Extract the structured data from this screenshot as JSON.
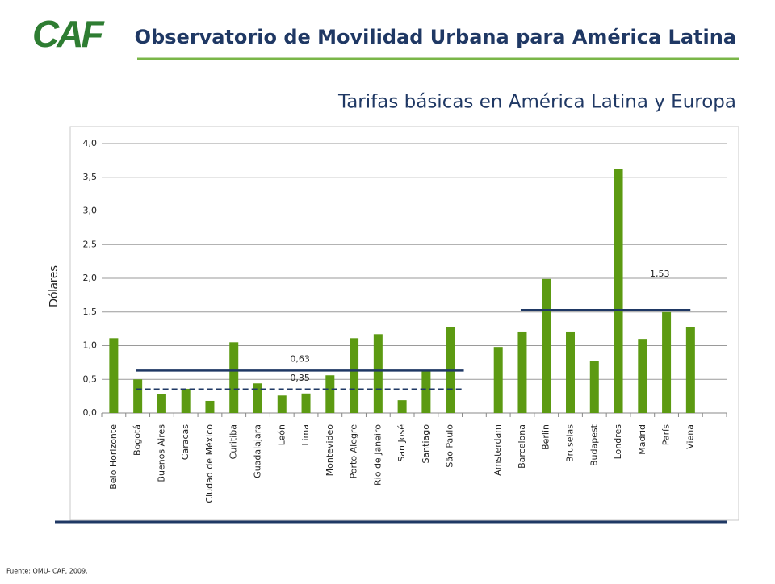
{
  "logo": "CAF",
  "header": {
    "title": "Observatorio de Movilidad Urbana para América Latina"
  },
  "footer": {
    "source": "Fuente: OMU- CAF, 2009."
  },
  "chart_data": {
    "type": "bar",
    "title": "Tarifas básicas en América Latina y Europa",
    "y_label": "Dólares",
    "color": "#5c9a12",
    "categories": [
      "Belo Horizonte",
      "Bogotá",
      "Buenos Aires",
      "Caracas",
      "Ciudad de México",
      "Curitiba",
      "Guadalajara",
      "León",
      "Lima",
      "Montevideo",
      "Porto Alegre",
      "Rio de Janeiro",
      "San José",
      "Santiago",
      "São Paulo",
      null,
      "Amsterdam",
      "Barcelona",
      "Berlín",
      "Bruselas",
      "Budapest",
      "Londres",
      "Madrid",
      "París",
      "Viena",
      null
    ],
    "values": [
      1.11,
      0.5,
      0.28,
      0.36,
      0.18,
      1.05,
      0.44,
      0.26,
      0.29,
      0.56,
      1.11,
      1.17,
      0.19,
      0.62,
      1.28,
      null,
      0.98,
      1.21,
      1.99,
      1.21,
      0.77,
      3.62,
      1.1,
      1.5,
      1.28,
      null
    ],
    "ylim": [
      0,
      4
    ],
    "yticks": [
      {
        "value": 0,
        "label": "0,0"
      },
      {
        "value": 0.5,
        "label": "0,5"
      },
      {
        "value": 1,
        "label": "1,0"
      },
      {
        "value": 1.5,
        "label": "1,5"
      },
      {
        "value": 2,
        "label": "2,0"
      },
      {
        "value": 2.5,
        "label": "2,5"
      },
      {
        "value": 3,
        "label": "3,0"
      },
      {
        "value": 3.5,
        "label": "3,5"
      },
      {
        "value": 4,
        "label": "4,0"
      }
    ],
    "grid": true,
    "reference_lines": [
      {
        "value": 0.63,
        "label": "0,63",
        "style": "solid",
        "color": "#1f3864"
      },
      {
        "value": 0.35,
        "label": "0,35",
        "style": "dashed",
        "color": "#1f3864"
      },
      {
        "value": 1.53,
        "label": "1,53",
        "style": "solid",
        "color": "#1f3864"
      }
    ]
  }
}
